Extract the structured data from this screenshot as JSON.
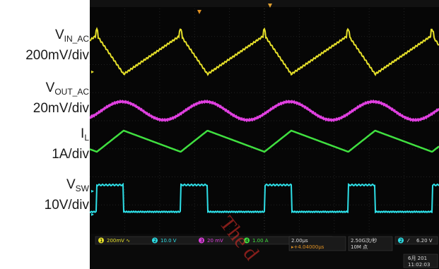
{
  "labels": {
    "vin": {
      "main": "V",
      "sub": "IN_AC",
      "scale": "200mV/div"
    },
    "vout": {
      "main": "V",
      "sub": "OUT_AC",
      "scale": "20mV/div"
    },
    "il": {
      "main": "I",
      "sub": "L",
      "scale": "1A/div"
    },
    "vsw": {
      "main": "V",
      "sub": "SW",
      "scale": "10V/div"
    }
  },
  "status_bar": {
    "ch1": {
      "num": "1",
      "text": "200mV ∿"
    },
    "ch2": {
      "num": "2",
      "text": "10.0 V"
    },
    "ch3": {
      "num": "3",
      "text": "20 mV"
    },
    "ch4": {
      "num": "4",
      "text": "1.00 A"
    },
    "timebase": "2.00µs",
    "trigger_pos": "▸+4.04000µs",
    "sample_rate": "2.50G次/秒",
    "record_length": "10M 点",
    "trig_chan": "2",
    "trig_slope": "⁄",
    "trig_level": "6.20 V",
    "date": "6月 201",
    "time": "11:02:03"
  },
  "watermark": "The d",
  "colors": {
    "ch1": "#e6e02a",
    "ch2": "#2ee0e8",
    "ch3": "#e040e0",
    "ch4": "#40e040",
    "grid": "#2a2a2a",
    "background": "#060606"
  },
  "chart_data": {
    "type": "line",
    "xlabel": "",
    "ylabel": "",
    "time_per_div": "2.00µs",
    "switching_period_div": 2.4,
    "series": [
      {
        "name": "V_IN_AC",
        "channel": 1,
        "scale": "200mV/div",
        "shape": "triangle-ripple"
      },
      {
        "name": "V_OUT_AC",
        "channel": 3,
        "scale": "20mV/div",
        "shape": "sine-ripple"
      },
      {
        "name": "I_L",
        "channel": 4,
        "scale": "1A/div",
        "shape": "triangle"
      },
      {
        "name": "V_SW",
        "channel": 2,
        "scale": "10V/div",
        "shape": "square"
      }
    ],
    "grid": true
  }
}
